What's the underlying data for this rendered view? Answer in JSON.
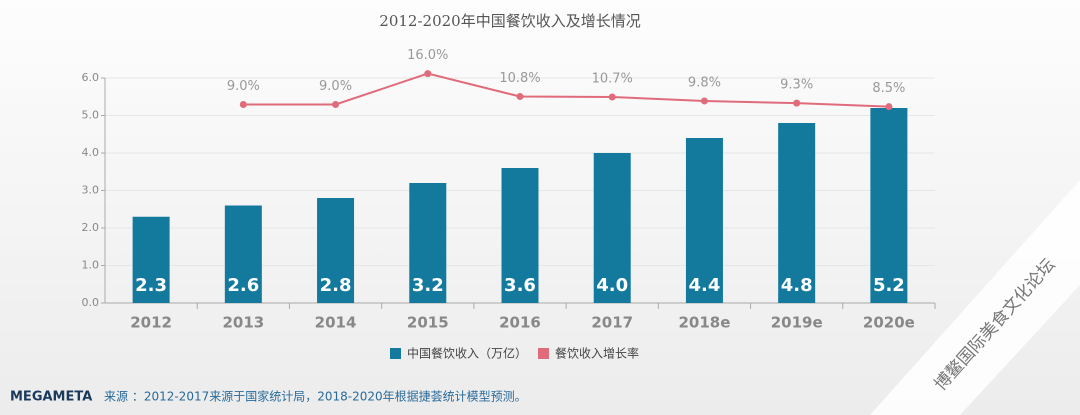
{
  "chart_data": {
    "type": "bar",
    "title": "2012-2020年中国餐饮收入及增长情况",
    "categories": [
      "2012",
      "2013",
      "2014",
      "2015",
      "2016",
      "2017",
      "2018e",
      "2019e",
      "2020e"
    ],
    "series": [
      {
        "name": "中国餐饮收入（万亿）",
        "color": "#137a9e",
        "type": "bar",
        "values": [
          2.3,
          2.6,
          2.8,
          3.2,
          3.6,
          4.0,
          4.4,
          4.8,
          5.2
        ],
        "value_labels": [
          "2.3",
          "2.6",
          "2.8",
          "3.2",
          "3.6",
          "4.0",
          "4.4",
          "4.8",
          "5.2"
        ]
      },
      {
        "name": "餐饮收入增长率",
        "color": "#e06b7b",
        "type": "line",
        "axis": "y2",
        "values": [
          null,
          9.0,
          9.0,
          16.0,
          10.8,
          10.7,
          9.8,
          9.3,
          8.5
        ],
        "value_labels": [
          null,
          "9.0%",
          "9.0%",
          "16.0%",
          "10.8%",
          "10.7%",
          "9.8%",
          "9.3%",
          "8.5%"
        ]
      }
    ],
    "ylim": [
      0,
      6
    ],
    "yticks": [
      {
        "value": 0,
        "label": "0.0"
      },
      {
        "value": 1,
        "label": "1.0"
      },
      {
        "value": 2,
        "label": "2.0"
      },
      {
        "value": 3,
        "label": "3.0"
      },
      {
        "value": 4,
        "label": "4.0"
      },
      {
        "value": 5,
        "label": "5.0"
      },
      {
        "value": 6,
        "label": "6.0"
      }
    ],
    "y2lim": [
      -36,
      15
    ],
    "grid": true,
    "legend": "bottom",
    "logo": "MEGAMETA",
    "source": "来源 ：2012-2017来源于国家统计局，2018-2020年根据捷荟统计模型预测。",
    "watermark": "博鳌国际美食文化论坛"
  }
}
